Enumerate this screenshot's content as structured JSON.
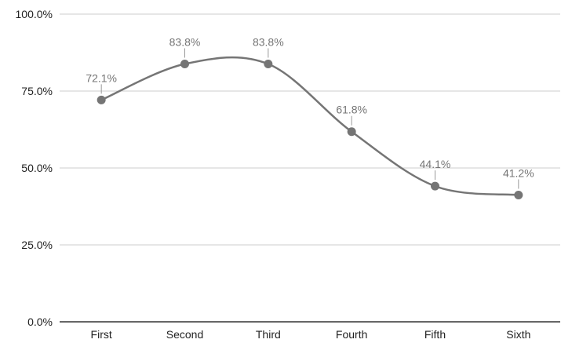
{
  "chart_data": {
    "type": "line",
    "categories": [
      "First",
      "Second",
      "Third",
      "Fourth",
      "Fifth",
      "Sixth"
    ],
    "series": [
      {
        "values": [
          72.1,
          83.8,
          83.8,
          61.8,
          44.1,
          41.2
        ],
        "data_labels": [
          "72.1%",
          "83.8%",
          "83.8%",
          "61.8%",
          "44.1%",
          "41.2%"
        ],
        "color": "#757575"
      }
    ],
    "y_ticks": [
      0,
      25,
      50,
      75,
      100
    ],
    "y_tick_labels": [
      "0.0%",
      "25.0%",
      "50.0%",
      "75.0%",
      "100.0%"
    ],
    "ylim": [
      0,
      100
    ],
    "smooth": true,
    "grid": true,
    "legend": "none"
  }
}
